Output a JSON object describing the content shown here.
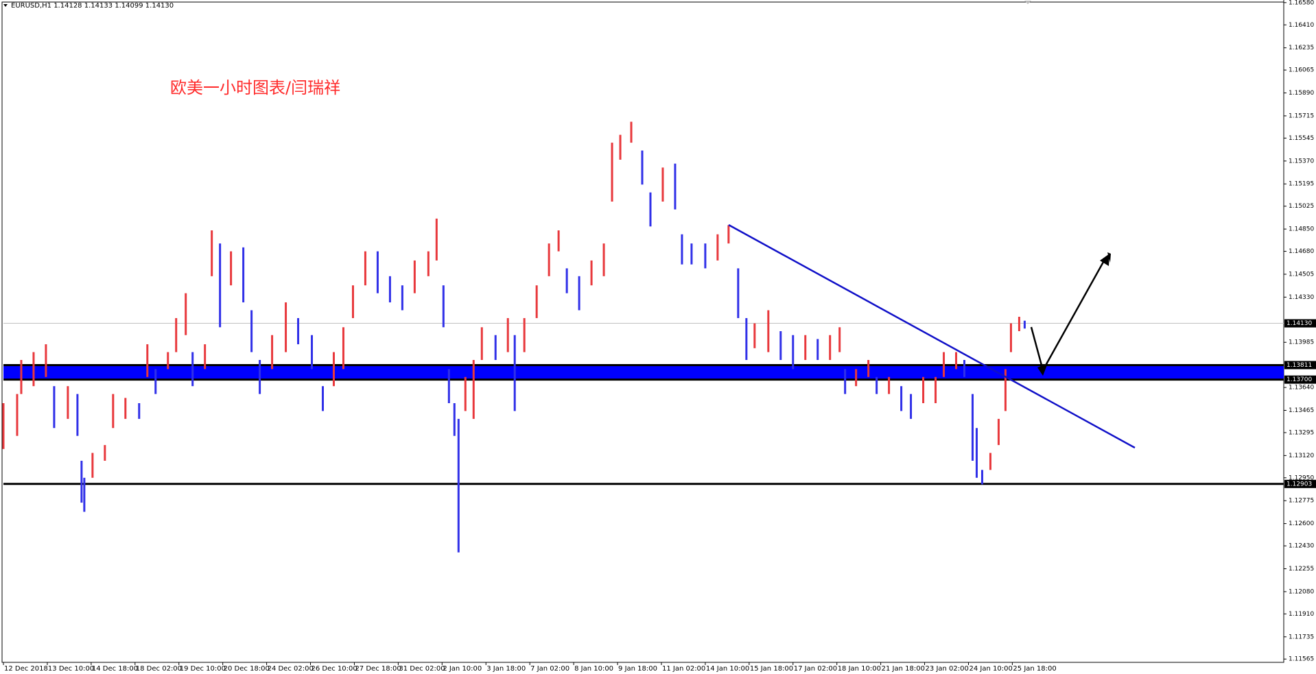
{
  "chart_data": {
    "type": "range-bars",
    "header": "EURUSD,H1  1.14128 1.14133 1.14099 1.14130",
    "annotation": "欧美一小时图表/闫瑞祥",
    "up_color": "#e8383c",
    "down_color": "#3030e8",
    "x": [
      0,
      10,
      13,
      22,
      31,
      37,
      47,
      54,
      57,
      59,
      65,
      74,
      80,
      89,
      99,
      105,
      111,
      120,
      126,
      133,
      138,
      147,
      152,
      158,
      166,
      175,
      181,
      187,
      196,
      206,
      215,
      225,
      233,
      241,
      248,
      255,
      264,
      273,
      282,
      291,
      300,
      310,
      316,
      321,
      325,
      329,
      332,
      337,
      343,
      349,
      359,
      368,
      373,
      380,
      389,
      398,
      405,
      411,
      420,
      429,
      438,
      444,
      450,
      458,
      466,
      472,
      481,
      490,
      495,
      502,
      512,
      521,
      529,
      536,
      542,
      548,
      558,
      567,
      576,
      585,
      594,
      603,
      610,
      614,
      622,
      631,
      637,
      646,
      655,
      662,
      671,
      680,
      686,
      695,
      701,
      707,
      710,
      714,
      720,
      726,
      731,
      735,
      741,
      745
    ],
    "high": [
      1.1352,
      1.1359,
      1.1385,
      1.1391,
      1.1397,
      1.1365,
      1.1365,
      1.1359,
      1.1308,
      1.1295,
      1.1314,
      1.132,
      1.1359,
      1.1356,
      1.1352,
      1.1397,
      1.1378,
      1.1391,
      1.1417,
      1.1436,
      1.1391,
      1.1397,
      1.1484,
      1.1474,
      1.1468,
      1.1471,
      1.1423,
      1.1385,
      1.1404,
      1.1429,
      1.1417,
      1.1404,
      1.1365,
      1.1391,
      1.141,
      1.1442,
      1.1468,
      1.1468,
      1.1449,
      1.1442,
      1.1461,
      1.1468,
      1.1493,
      1.1442,
      1.1378,
      1.1352,
      1.134,
      1.1372,
      1.1385,
      1.141,
      1.1404,
      1.1417,
      1.1404,
      1.1417,
      1.1442,
      1.1474,
      1.1484,
      1.1455,
      1.1449,
      1.1461,
      1.1474,
      1.1551,
      1.1557,
      1.1567,
      1.1545,
      1.1513,
      1.1532,
      1.1535,
      1.1481,
      1.1474,
      1.1474,
      1.1481,
      1.1488,
      1.1455,
      1.1417,
      1.1413,
      1.1423,
      1.1407,
      1.1404,
      1.1404,
      1.1401,
      1.1404,
      1.141,
      1.1378,
      1.1378,
      1.1385,
      1.1372,
      1.1372,
      1.1365,
      1.1359,
      1.1372,
      1.1372,
      1.1391,
      1.1391,
      1.1385,
      1.1359,
      1.1333,
      1.1301,
      1.1314,
      1.134,
      1.1378,
      1.1413,
      1.1418,
      1.1415
    ],
    "low": [
      1.1317,
      1.1327,
      1.1359,
      1.1365,
      1.1372,
      1.1333,
      1.134,
      1.1327,
      1.1276,
      1.1269,
      1.1295,
      1.1308,
      1.1333,
      1.134,
      1.134,
      1.1372,
      1.1359,
      1.1378,
      1.1391,
      1.1404,
      1.1365,
      1.1378,
      1.1449,
      1.141,
      1.1442,
      1.1429,
      1.1391,
      1.1359,
      1.1378,
      1.1391,
      1.1397,
      1.1378,
      1.1346,
      1.1365,
      1.1378,
      1.1417,
      1.1442,
      1.1436,
      1.1429,
      1.1423,
      1.1436,
      1.1449,
      1.1461,
      1.141,
      1.1352,
      1.1327,
      1.1238,
      1.1346,
      1.134,
      1.1385,
      1.1385,
      1.1391,
      1.1346,
      1.1391,
      1.1417,
      1.1449,
      1.1468,
      1.1436,
      1.1423,
      1.1442,
      1.1449,
      1.1506,
      1.1538,
      1.1551,
      1.1519,
      1.1487,
      1.1506,
      1.15,
      1.1458,
      1.1458,
      1.1455,
      1.1461,
      1.1474,
      1.1417,
      1.1385,
      1.1394,
      1.1391,
      1.1385,
      1.1378,
      1.1385,
      1.1385,
      1.1385,
      1.1391,
      1.1359,
      1.1365,
      1.1372,
      1.1359,
      1.1359,
      1.1346,
      1.134,
      1.1352,
      1.1352,
      1.1372,
      1.1378,
      1.1372,
      1.1308,
      1.1295,
      1.129,
      1.1301,
      1.132,
      1.1346,
      1.1391,
      1.1407,
      1.1409
    ],
    "xlim": [
      0,
      934
    ],
    "ylim": [
      1.1154,
      1.166
    ],
    "xticks": [
      {
        "value": 0,
        "label": "12 Dec 2018"
      },
      {
        "value": 32,
        "label": "13 Dec 10:00"
      },
      {
        "value": 64,
        "label": "14 Dec 18:00"
      },
      {
        "value": 96,
        "label": "18 Dec 02:00"
      },
      {
        "value": 128,
        "label": "19 Dec 10:00"
      },
      {
        "value": 160,
        "label": "20 Dec 18:00"
      },
      {
        "value": 192,
        "label": "24 Dec 02:00"
      },
      {
        "value": 224,
        "label": "26 Dec 10:00"
      },
      {
        "value": 256,
        "label": "27 Dec 18:00"
      },
      {
        "value": 288,
        "label": "31 Dec 02:00"
      },
      {
        "value": 320,
        "label": "2 Jan 10:00"
      },
      {
        "value": 352,
        "label": "3 Jan 18:00"
      },
      {
        "value": 384,
        "label": "7 Jan 02:00"
      },
      {
        "value": 416,
        "label": "8 Jan 10:00"
      },
      {
        "value": 448,
        "label": "9 Jan 18:00"
      },
      {
        "value": 480,
        "label": "11 Jan 02:00"
      },
      {
        "value": 512,
        "label": "14 Jan 10:00"
      },
      {
        "value": 544,
        "label": "15 Jan 18:00"
      },
      {
        "value": 576,
        "label": "17 Jan 02:00"
      },
      {
        "value": 608,
        "label": "18 Jan 10:00"
      },
      {
        "value": 640,
        "label": "21 Jan 18:00"
      },
      {
        "value": 672,
        "label": "23 Jan 02:00"
      },
      {
        "value": 704,
        "label": "24 Jan 10:00"
      },
      {
        "value": 736,
        "label": "25 Jan 18:00"
      }
    ],
    "yticks": [
      {
        "value": 1.1658,
        "label": "1.16580"
      },
      {
        "value": 1.1641,
        "label": "1.16410"
      },
      {
        "value": 1.16235,
        "label": "1.16235"
      },
      {
        "value": 1.16065,
        "label": "1.16065"
      },
      {
        "value": 1.1589,
        "label": "1.15890"
      },
      {
        "value": 1.15715,
        "label": "1.15715"
      },
      {
        "value": 1.15545,
        "label": "1.15545"
      },
      {
        "value": 1.1537,
        "label": "1.15370"
      },
      {
        "value": 1.15195,
        "label": "1.15195"
      },
      {
        "value": 1.15025,
        "label": "1.15025"
      },
      {
        "value": 1.1485,
        "label": "1.14850"
      },
      {
        "value": 1.1468,
        "label": "1.14680"
      },
      {
        "value": 1.14505,
        "label": "1.14505"
      },
      {
        "value": 1.1433,
        "label": "1.14330"
      },
      {
        "value": 1.13985,
        "label": "1.13985"
      },
      {
        "value": 1.1364,
        "label": "1.13640"
      },
      {
        "value": 1.13465,
        "label": "1.13465"
      },
      {
        "value": 1.13295,
        "label": "1.13295"
      },
      {
        "value": 1.1312,
        "label": "1.13120"
      },
      {
        "value": 1.1295,
        "label": "1.12950"
      },
      {
        "value": 1.12775,
        "label": "1.12775"
      },
      {
        "value": 1.126,
        "label": "1.12600"
      },
      {
        "value": 1.1243,
        "label": "1.12430"
      },
      {
        "value": 1.12255,
        "label": "1.12255"
      },
      {
        "value": 1.1208,
        "label": "1.12080"
      },
      {
        "value": 1.1191,
        "label": "1.11910"
      },
      {
        "value": 1.11735,
        "label": "1.11735"
      },
      {
        "value": 1.11565,
        "label": "1.11565"
      }
    ],
    "current_price": {
      "value": 1.1413,
      "label": "1.14130"
    },
    "zone": [
      {
        "value": 1.13811,
        "label": "1.13811"
      },
      {
        "value": 1.137,
        "label": "1.13700"
      }
    ],
    "support": {
      "value": 1.12903,
      "label": "1.12903"
    }
  }
}
